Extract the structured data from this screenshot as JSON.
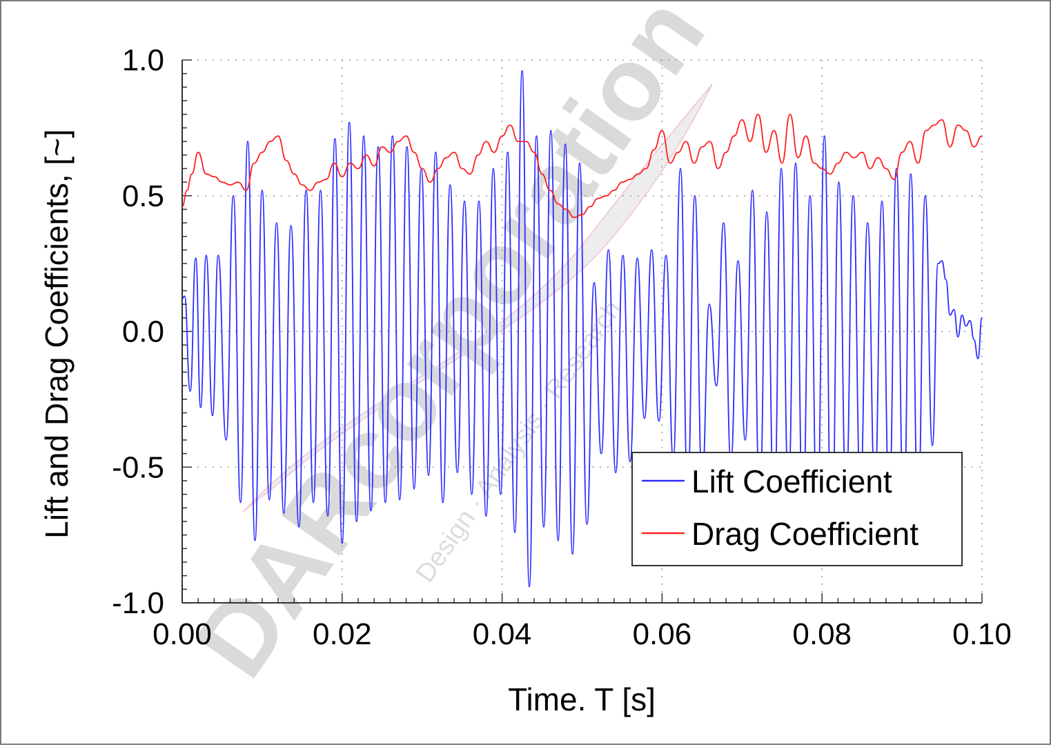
{
  "watermark": {
    "brand": "DARcorporation",
    "tagline": "Design · Analysis · Research",
    "color": "#d2d2d2"
  },
  "chart_data": {
    "type": "line",
    "title": "",
    "xlabel": "Time. T [s]",
    "ylabel": "Lift and Drag Coefficients, [~]",
    "xlim": [
      0.0,
      0.1
    ],
    "ylim": [
      -1.0,
      1.0
    ],
    "xticks": [
      "0.00",
      "0.02",
      "0.04",
      "0.06",
      "0.08",
      "0.10"
    ],
    "xtick_values": [
      0.0,
      0.02,
      0.04,
      0.06,
      0.08,
      0.1
    ],
    "yticks": [
      "1.0",
      "0.5",
      "0.0",
      "-0.5",
      "-1.0"
    ],
    "ytick_values": [
      1.0,
      0.5,
      0.0,
      -0.5,
      -1.0
    ],
    "grid": true,
    "legend": "bottom-right",
    "series": [
      {
        "name": "Lift Coefficient",
        "color": "#2b2bff",
        "x": [
          0.0,
          0.0003,
          0.001,
          0.0017,
          0.0023,
          0.003,
          0.0038,
          0.0045,
          0.0055,
          0.0064,
          0.0073,
          0.0082,
          0.0091,
          0.01,
          0.0109,
          0.0118,
          0.0127,
          0.0136,
          0.0146,
          0.0155,
          0.0164,
          0.0173,
          0.0182,
          0.0191,
          0.02,
          0.0209,
          0.0218,
          0.0227,
          0.0236,
          0.0245,
          0.0254,
          0.0263,
          0.0272,
          0.0281,
          0.029,
          0.0299,
          0.0308,
          0.0317,
          0.0326,
          0.0335,
          0.0344,
          0.0353,
          0.0362,
          0.0371,
          0.038,
          0.0389,
          0.0398,
          0.0407,
          0.0416,
          0.0425,
          0.0434,
          0.0443,
          0.0452,
          0.0461,
          0.047,
          0.0479,
          0.0488,
          0.0497,
          0.0506,
          0.0515,
          0.0524,
          0.0533,
          0.0542,
          0.0551,
          0.056,
          0.0569,
          0.0578,
          0.0587,
          0.0596,
          0.0605,
          0.0614,
          0.0623,
          0.0632,
          0.0641,
          0.065,
          0.0659,
          0.0668,
          0.0677,
          0.0686,
          0.0695,
          0.0704,
          0.0713,
          0.0722,
          0.0731,
          0.074,
          0.0749,
          0.0758,
          0.0767,
          0.0776,
          0.0785,
          0.0794,
          0.0803,
          0.0812,
          0.0821,
          0.083,
          0.0839,
          0.0848,
          0.0857,
          0.0866,
          0.0875,
          0.0884,
          0.0893,
          0.0902,
          0.0911,
          0.092,
          0.0929,
          0.0938,
          0.0945,
          0.095,
          0.0955,
          0.096,
          0.0965,
          0.097,
          0.0975,
          0.098,
          0.0985,
          0.099,
          0.0995,
          0.1
        ],
        "values": [
          0.12,
          0.13,
          -0.22,
          0.27,
          -0.28,
          0.28,
          -0.31,
          0.28,
          -0.4,
          0.5,
          -0.63,
          0.7,
          -0.77,
          0.52,
          -0.62,
          0.4,
          -0.67,
          0.39,
          -0.72,
          0.52,
          -0.63,
          0.52,
          -0.68,
          0.71,
          -0.78,
          0.77,
          -0.7,
          0.72,
          -0.66,
          0.68,
          -0.63,
          0.72,
          -0.62,
          0.68,
          -0.58,
          0.6,
          -0.53,
          0.66,
          -0.63,
          0.54,
          -0.52,
          0.48,
          -0.6,
          0.48,
          -0.68,
          0.6,
          -0.6,
          0.66,
          -0.74,
          0.96,
          -0.94,
          0.72,
          -0.72,
          0.74,
          -0.77,
          0.69,
          -0.82,
          0.62,
          -0.71,
          0.18,
          -0.45,
          0.3,
          -0.52,
          0.28,
          -0.48,
          0.27,
          -0.32,
          0.3,
          -0.33,
          0.28,
          -0.47,
          0.6,
          -0.58,
          0.5,
          -0.55,
          0.1,
          -0.2,
          0.4,
          -0.48,
          0.26,
          -0.4,
          0.52,
          -0.62,
          0.44,
          -0.67,
          0.6,
          -0.58,
          0.62,
          -0.68,
          0.5,
          -0.72,
          0.72,
          -0.82,
          0.55,
          -0.6,
          0.5,
          -0.58,
          0.4,
          -0.58,
          0.48,
          -0.62,
          0.6,
          -0.68,
          0.58,
          -0.65,
          0.5,
          -0.42,
          0.25,
          0.26,
          0.19,
          0.06,
          0.08,
          -0.02,
          0.06,
          0.02,
          0.04,
          -0.03,
          -0.1,
          0.05
        ]
      },
      {
        "name": "Drag Coefficient",
        "color": "#ff2020",
        "x": [
          0.0,
          0.0006,
          0.0012,
          0.002,
          0.003,
          0.004,
          0.005,
          0.006,
          0.007,
          0.008,
          0.009,
          0.01,
          0.011,
          0.012,
          0.013,
          0.014,
          0.015,
          0.016,
          0.017,
          0.018,
          0.019,
          0.02,
          0.021,
          0.022,
          0.023,
          0.024,
          0.025,
          0.026,
          0.027,
          0.028,
          0.029,
          0.03,
          0.031,
          0.032,
          0.033,
          0.034,
          0.035,
          0.036,
          0.037,
          0.038,
          0.039,
          0.04,
          0.041,
          0.042,
          0.043,
          0.044,
          0.045,
          0.046,
          0.047,
          0.048,
          0.049,
          0.05,
          0.051,
          0.052,
          0.053,
          0.054,
          0.055,
          0.056,
          0.057,
          0.058,
          0.059,
          0.06,
          0.061,
          0.062,
          0.063,
          0.064,
          0.065,
          0.066,
          0.067,
          0.068,
          0.069,
          0.07,
          0.071,
          0.072,
          0.073,
          0.074,
          0.075,
          0.076,
          0.077,
          0.078,
          0.079,
          0.08,
          0.081,
          0.082,
          0.083,
          0.084,
          0.085,
          0.086,
          0.087,
          0.088,
          0.089,
          0.09,
          0.091,
          0.092,
          0.093,
          0.094,
          0.095,
          0.096,
          0.097,
          0.098,
          0.099,
          0.1
        ],
        "values": [
          0.46,
          0.52,
          0.58,
          0.66,
          0.58,
          0.57,
          0.55,
          0.54,
          0.55,
          0.52,
          0.62,
          0.66,
          0.7,
          0.72,
          0.63,
          0.58,
          0.54,
          0.52,
          0.55,
          0.56,
          0.62,
          0.57,
          0.62,
          0.6,
          0.65,
          0.61,
          0.68,
          0.66,
          0.7,
          0.72,
          0.66,
          0.6,
          0.55,
          0.6,
          0.64,
          0.66,
          0.6,
          0.58,
          0.65,
          0.7,
          0.66,
          0.72,
          0.76,
          0.7,
          0.7,
          0.66,
          0.58,
          0.52,
          0.47,
          0.45,
          0.42,
          0.43,
          0.46,
          0.49,
          0.5,
          0.52,
          0.55,
          0.56,
          0.58,
          0.6,
          0.67,
          0.74,
          0.62,
          0.66,
          0.7,
          0.62,
          0.68,
          0.7,
          0.6,
          0.66,
          0.72,
          0.78,
          0.7,
          0.8,
          0.66,
          0.74,
          0.62,
          0.8,
          0.64,
          0.72,
          0.62,
          0.6,
          0.58,
          0.62,
          0.66,
          0.64,
          0.66,
          0.6,
          0.64,
          0.6,
          0.56,
          0.66,
          0.7,
          0.62,
          0.74,
          0.76,
          0.78,
          0.68,
          0.76,
          0.74,
          0.68,
          0.72
        ]
      }
    ]
  }
}
